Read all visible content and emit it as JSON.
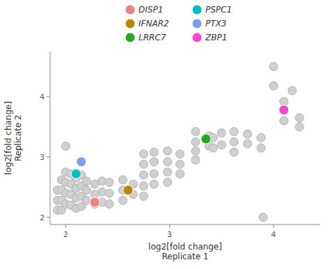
{
  "chart_data": {
    "type": "scatter",
    "xlabel": "log2[fold change]\nReplicate 1",
    "ylabel": "log2[fold change]\nReplicate 2",
    "xlim": [
      1.85,
      4.45
    ],
    "ylim": [
      1.88,
      4.75
    ],
    "xticks": [
      2,
      3,
      4
    ],
    "yticks": [
      2,
      3,
      4
    ],
    "grid": false,
    "legend": "top",
    "series": [
      {
        "color": "#d0d0d0",
        "x": [
          1.92,
          1.92,
          1.92,
          1.96,
          1.96,
          1.96,
          1.96,
          2.0,
          2.0,
          2.0,
          2.0,
          2.0,
          2.05,
          2.05,
          2.05,
          2.05,
          2.1,
          2.1,
          2.1,
          2.1,
          2.15,
          2.15,
          2.15,
          2.15,
          2.2,
          2.2,
          2.2,
          2.28,
          2.28,
          2.28,
          2.35,
          2.35,
          2.35,
          2.42,
          2.42,
          2.42,
          2.55,
          2.55,
          2.55,
          2.65,
          2.65,
          2.75,
          2.75,
          2.75,
          2.75,
          2.75,
          2.85,
          2.85,
          2.85,
          2.85,
          2.98,
          2.98,
          2.98,
          2.98,
          3.1,
          3.1,
          3.1,
          3.25,
          3.25,
          3.25,
          3.25,
          3.38,
          3.38,
          3.5,
          3.5,
          3.62,
          3.62,
          3.62,
          3.75,
          3.75,
          3.88,
          3.88,
          3.9,
          4.0,
          4.0,
          4.1,
          4.1,
          4.18,
          4.25,
          4.25,
          3.42,
          3.42
        ],
        "values": [
          2.45,
          2.28,
          2.12,
          2.62,
          2.45,
          2.28,
          2.12,
          3.18,
          2.75,
          2.58,
          2.4,
          2.22,
          2.72,
          2.55,
          2.38,
          2.2,
          2.65,
          2.48,
          2.32,
          2.15,
          2.7,
          2.52,
          2.35,
          2.18,
          2.6,
          2.45,
          2.28,
          2.55,
          2.38,
          2.22,
          2.6,
          2.42,
          2.25,
          2.58,
          2.4,
          2.22,
          2.62,
          2.45,
          2.28,
          2.55,
          2.38,
          3.05,
          2.88,
          2.7,
          2.52,
          2.35,
          3.08,
          2.92,
          2.72,
          2.55,
          3.1,
          2.92,
          2.75,
          2.58,
          3.05,
          2.88,
          2.72,
          3.42,
          3.25,
          3.1,
          2.95,
          3.35,
          3.18,
          3.4,
          3.2,
          3.42,
          3.25,
          3.08,
          3.38,
          3.22,
          3.32,
          3.15,
          2.0,
          4.5,
          4.18,
          3.92,
          3.6,
          4.1,
          3.65,
          3.5,
          3.32,
          3.15
        ]
      },
      {
        "name": "DISP1",
        "color": "#f08080",
        "x": [
          2.28
        ],
        "values": [
          2.25
        ]
      },
      {
        "name": "PSPC1",
        "color": "#00bfbf",
        "x": [
          2.1
        ],
        "values": [
          2.72
        ]
      },
      {
        "name": "IFNAR2",
        "color": "#b8860b",
        "x": [
          2.6
        ],
        "values": [
          2.45
        ]
      },
      {
        "name": "PTX3",
        "color": "#7b9ee8",
        "x": [
          2.15
        ],
        "values": [
          2.92
        ]
      },
      {
        "name": "LRRC7",
        "color": "#22aa22",
        "x": [
          3.35
        ],
        "values": [
          3.3
        ]
      },
      {
        "name": "ZBP1",
        "color": "#ff44cc",
        "x": [
          4.1
        ],
        "values": [
          3.78
        ]
      }
    ]
  }
}
